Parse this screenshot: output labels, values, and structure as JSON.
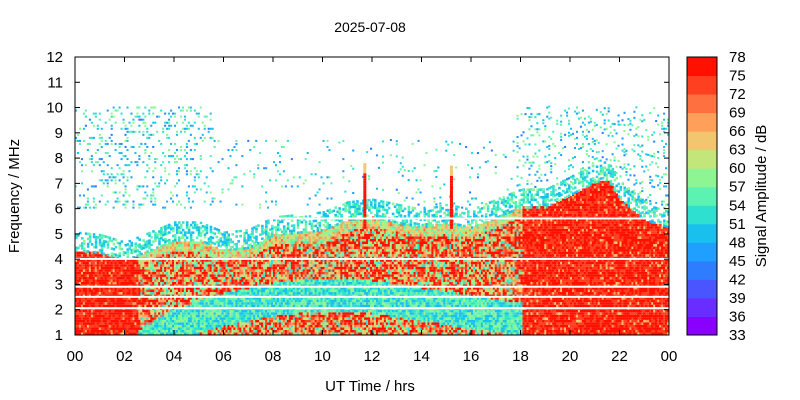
{
  "chart_data": {
    "type": "heatmap",
    "title": "2025-07-08",
    "xlabel": "UT Time / hrs",
    "ylabel": "Frequency / MHz",
    "colorbar_label": "Signal Amplitude / dB",
    "x_ticks": [
      "00",
      "02",
      "04",
      "06",
      "08",
      "10",
      "12",
      "14",
      "16",
      "18",
      "20",
      "22",
      "00"
    ],
    "xlim_hours": [
      0,
      24
    ],
    "y_ticks": [
      1,
      2,
      3,
      4,
      5,
      6,
      7,
      8,
      9,
      10,
      11,
      12
    ],
    "ylim": [
      1,
      12
    ],
    "colorbar_ticks": [
      33,
      36,
      39,
      42,
      45,
      48,
      51,
      54,
      57,
      60,
      63,
      66,
      69,
      72,
      75,
      78
    ],
    "clim": [
      33,
      78
    ],
    "colormap": [
      "#8a00ff",
      "#6a2dff",
      "#4b55ff",
      "#2e7cff",
      "#1f9fff",
      "#19c0ee",
      "#2ee0d0",
      "#5cf2b2",
      "#8ef593",
      "#c2e67a",
      "#f2c66e",
      "#ff9f5a",
      "#ff7040",
      "#ff4020",
      "#ff1000"
    ],
    "layers": {
      "strong_region_upper_boundary_mhz": [
        {
          "h": 0.0,
          "f": 4.3
        },
        {
          "h": 1.0,
          "f": 4.2
        },
        {
          "h": 2.0,
          "f": 3.9
        },
        {
          "h": 3.0,
          "f": 4.3
        },
        {
          "h": 4.0,
          "f": 4.7
        },
        {
          "h": 5.0,
          "f": 4.7
        },
        {
          "h": 6.0,
          "f": 4.3
        },
        {
          "h": 7.0,
          "f": 4.4
        },
        {
          "h": 8.0,
          "f": 4.9
        },
        {
          "h": 9.0,
          "f": 5.0
        },
        {
          "h": 10.0,
          "f": 5.1
        },
        {
          "h": 11.0,
          "f": 5.5
        },
        {
          "h": 12.0,
          "f": 5.6
        },
        {
          "h": 13.0,
          "f": 5.4
        },
        {
          "h": 14.0,
          "f": 5.2
        },
        {
          "h": 15.0,
          "f": 5.4
        },
        {
          "h": 16.0,
          "f": 5.2
        },
        {
          "h": 17.0,
          "f": 5.6
        },
        {
          "h": 18.0,
          "f": 6.0
        },
        {
          "h": 19.0,
          "f": 6.0
        },
        {
          "h": 20.0,
          "f": 6.5
        },
        {
          "h": 21.0,
          "f": 7.0
        },
        {
          "h": 21.5,
          "f": 7.1
        },
        {
          "h": 22.0,
          "f": 6.3
        },
        {
          "h": 23.0,
          "f": 5.5
        },
        {
          "h": 24.0,
          "f": 5.2
        }
      ],
      "lower_gap_boundary_mhz": [
        {
          "h": 0.0,
          "f": 1.0
        },
        {
          "h": 2.5,
          "f": 1.1
        },
        {
          "h": 4.0,
          "f": 2.0
        },
        {
          "h": 6.0,
          "f": 2.6
        },
        {
          "h": 8.0,
          "f": 3.0
        },
        {
          "h": 10.0,
          "f": 3.2
        },
        {
          "h": 12.0,
          "f": 3.1
        },
        {
          "h": 14.0,
          "f": 2.8
        },
        {
          "h": 16.0,
          "f": 2.5
        },
        {
          "h": 18.0,
          "f": 2.2
        },
        {
          "h": 20.0,
          "f": 1.3
        },
        {
          "h": 21.5,
          "f": 1.0
        }
      ],
      "spikes": [
        {
          "h": 11.7,
          "f_top": 7.7
        },
        {
          "h": 15.2,
          "f_top": 7.6
        }
      ],
      "noise_band_mhz": [
        6.0,
        10.0
      ],
      "daytime_noise_gap_hours": [
        5.6,
        17.8
      ]
    }
  }
}
